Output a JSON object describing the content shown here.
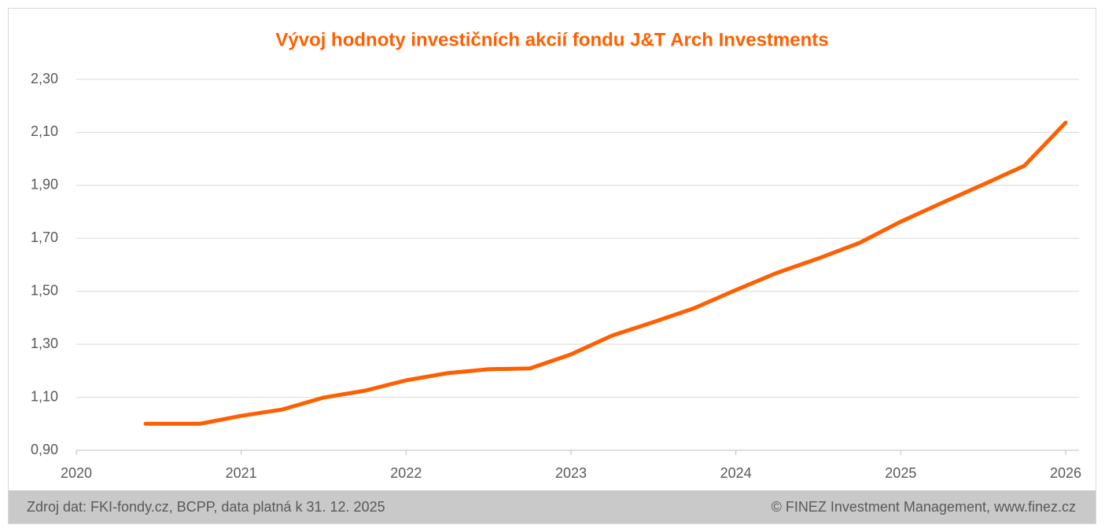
{
  "chart_data": {
    "type": "line",
    "title": "Vývoj hodnoty investičních akcií fondu J&T Arch Investments",
    "x": [
      2020.42,
      2020.75,
      2021,
      2021.25,
      2021.5,
      2021.75,
      2022,
      2022.25,
      2022.5,
      2022.75,
      2023,
      2023.25,
      2023.5,
      2023.75,
      2024,
      2024.25,
      2024.5,
      2024.75,
      2025,
      2025.25,
      2025.5,
      2025.75,
      2026
    ],
    "series": [
      {
        "color": "#ff5f00",
        "values": [
          1.0,
          1.0,
          1.03,
          1.054,
          1.099,
          1.125,
          1.164,
          1.191,
          1.206,
          1.209,
          1.262,
          1.333,
          1.384,
          1.437,
          1.505,
          1.57,
          1.624,
          1.683,
          1.763,
          1.834,
          1.903,
          1.974,
          2.137
        ]
      }
    ],
    "xlim": [
      2020,
      2026
    ],
    "xticks": [
      2020,
      2021,
      2022,
      2023,
      2024,
      2025,
      2026
    ],
    "ylim": [
      0.9,
      2.3
    ],
    "yticks": [
      {
        "value": 0.9,
        "label": "0,90"
      },
      {
        "value": 1.1,
        "label": "1,10"
      },
      {
        "value": 1.3,
        "label": "1,30"
      },
      {
        "value": 1.5,
        "label": "1,50"
      },
      {
        "value": 1.7,
        "label": "1,70"
      },
      {
        "value": 1.9,
        "label": "1,90"
      },
      {
        "value": 2.1,
        "label": "2,10"
      },
      {
        "value": 2.3,
        "label": "2,30"
      }
    ],
    "grid": true,
    "source": "Zdroj dat: FKI-fondy.cz, BCPP, data platná k 31. 12. 2025",
    "credit": "© FINEZ Investment Management, www.finez.cz"
  }
}
